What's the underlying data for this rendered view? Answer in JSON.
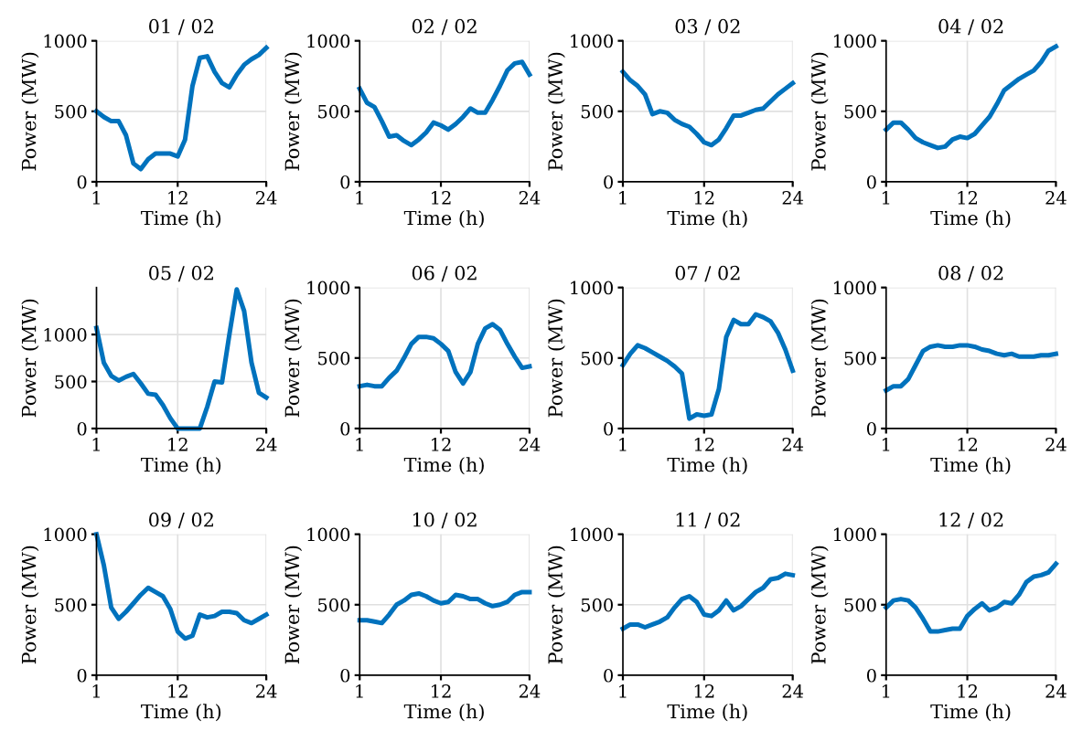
{
  "chart_data": [
    {
      "type": "line",
      "title": "01 / 02",
      "xlabel": "Time (h)",
      "ylabel": "Power (MW)",
      "x": [
        1,
        2,
        3,
        4,
        5,
        6,
        7,
        8,
        9,
        10,
        11,
        12,
        13,
        14,
        15,
        16,
        17,
        18,
        19,
        20,
        21,
        22,
        23,
        24
      ],
      "series": [
        {
          "color": "#0072bd",
          "values": [
            500,
            460,
            430,
            430,
            330,
            130,
            90,
            160,
            200,
            200,
            200,
            180,
            300,
            680,
            880,
            890,
            780,
            700,
            670,
            760,
            830,
            870,
            900,
            950
          ]
        }
      ],
      "xlim": [
        1,
        24
      ],
      "xticks": [
        1,
        12,
        24
      ],
      "ylim": [
        0,
        1000
      ],
      "yticks": [
        0,
        500,
        1000
      ],
      "grid": true,
      "line_style": "solid"
    },
    {
      "type": "line",
      "title": "02 / 02",
      "xlabel": "Time (h)",
      "ylabel": "Power (MW)",
      "x": [
        1,
        2,
        3,
        4,
        5,
        6,
        7,
        8,
        9,
        10,
        11,
        12,
        13,
        14,
        15,
        16,
        17,
        18,
        19,
        20,
        21,
        22,
        23,
        24
      ],
      "series": [
        {
          "color": "#0072bd",
          "values": [
            660,
            560,
            530,
            430,
            320,
            330,
            290,
            260,
            300,
            350,
            420,
            400,
            370,
            410,
            460,
            520,
            490,
            490,
            580,
            680,
            790,
            840,
            850,
            760
          ]
        }
      ],
      "xlim": [
        1,
        24
      ],
      "xticks": [
        1,
        12,
        24
      ],
      "ylim": [
        0,
        1000
      ],
      "yticks": [
        0,
        500,
        1000
      ],
      "grid": true,
      "line_style": "solid"
    },
    {
      "type": "line",
      "title": "03 / 02",
      "xlabel": "Time (h)",
      "ylabel": "Power (MW)",
      "x": [
        1,
        2,
        3,
        4,
        5,
        6,
        7,
        8,
        9,
        10,
        11,
        12,
        13,
        14,
        15,
        16,
        17,
        18,
        19,
        20,
        21,
        22,
        23,
        24
      ],
      "series": [
        {
          "color": "#0072bd",
          "values": [
            780,
            720,
            680,
            620,
            480,
            500,
            490,
            440,
            410,
            390,
            340,
            280,
            260,
            300,
            380,
            470,
            470,
            490,
            510,
            520,
            570,
            620,
            660,
            700
          ]
        }
      ],
      "xlim": [
        1,
        24
      ],
      "xticks": [
        1,
        12,
        24
      ],
      "ylim": [
        0,
        1000
      ],
      "yticks": [
        0,
        500,
        1000
      ],
      "grid": true,
      "line_style": "solid"
    },
    {
      "type": "line",
      "title": "04 / 02",
      "xlabel": "Time (h)",
      "ylabel": "Power (MW)",
      "x": [
        1,
        2,
        3,
        4,
        5,
        6,
        7,
        8,
        9,
        10,
        11,
        12,
        13,
        14,
        15,
        16,
        17,
        18,
        19,
        20,
        21,
        22,
        23,
        24
      ],
      "series": [
        {
          "color": "#0072bd",
          "values": [
            370,
            420,
            420,
            370,
            310,
            280,
            260,
            240,
            250,
            300,
            320,
            310,
            340,
            400,
            460,
            550,
            650,
            690,
            730,
            760,
            790,
            850,
            930,
            960
          ]
        }
      ],
      "xlim": [
        1,
        24
      ],
      "xticks": [
        1,
        12,
        24
      ],
      "ylim": [
        0,
        1000
      ],
      "yticks": [
        0,
        500,
        1000
      ],
      "grid": true,
      "line_style": "solid"
    },
    {
      "type": "line",
      "title": "05 / 02",
      "xlabel": "Time (h)",
      "ylabel": "Power (MW)",
      "x": [
        1,
        2,
        3,
        4,
        5,
        6,
        7,
        8,
        9,
        10,
        11,
        12,
        13,
        14,
        15,
        16,
        17,
        18,
        19,
        20,
        21,
        22,
        23,
        24
      ],
      "series": [
        {
          "color": "#0072bd",
          "values": [
            1070,
            700,
            560,
            510,
            550,
            580,
            480,
            370,
            360,
            250,
            110,
            0,
            0,
            0,
            0,
            230,
            500,
            490,
            1000,
            1480,
            1250,
            700,
            380,
            330
          ]
        }
      ],
      "xlim": [
        1,
        24
      ],
      "xticks": [
        1,
        12,
        24
      ],
      "ylim": [
        0,
        1500
      ],
      "yticks": [
        0,
        500,
        1000
      ],
      "grid": true,
      "line_style": "solid"
    },
    {
      "type": "line",
      "title": "06 / 02",
      "xlabel": "Time (h)",
      "ylabel": "Power (MW)",
      "x": [
        1,
        2,
        3,
        4,
        5,
        6,
        7,
        8,
        9,
        10,
        11,
        12,
        13,
        14,
        15,
        16,
        17,
        18,
        19,
        20,
        21,
        22,
        23,
        24
      ],
      "series": [
        {
          "color": "#0072bd",
          "values": [
            300,
            310,
            300,
            300,
            360,
            410,
            500,
            600,
            650,
            650,
            640,
            600,
            550,
            400,
            320,
            400,
            600,
            710,
            740,
            700,
            600,
            510,
            430,
            440
          ]
        }
      ],
      "xlim": [
        1,
        24
      ],
      "xticks": [
        1,
        12,
        24
      ],
      "ylim": [
        0,
        1000
      ],
      "yticks": [
        0,
        500,
        1000
      ],
      "grid": true,
      "line_style": "solid"
    },
    {
      "type": "line",
      "title": "07 / 02",
      "xlabel": "Time (h)",
      "ylabel": "Power (MW)",
      "x": [
        1,
        2,
        3,
        4,
        5,
        6,
        7,
        8,
        9,
        10,
        11,
        12,
        13,
        14,
        15,
        16,
        17,
        18,
        19,
        20,
        21,
        22,
        23,
        24
      ],
      "series": [
        {
          "color": "#0072bd",
          "values": [
            450,
            530,
            590,
            570,
            540,
            510,
            480,
            440,
            390,
            70,
            100,
            90,
            100,
            280,
            650,
            770,
            740,
            740,
            810,
            790,
            760,
            680,
            560,
            410
          ]
        }
      ],
      "xlim": [
        1,
        24
      ],
      "xticks": [
        1,
        12,
        24
      ],
      "ylim": [
        0,
        1000
      ],
      "yticks": [
        0,
        500,
        1000
      ],
      "grid": true,
      "line_style": "solid"
    },
    {
      "type": "line",
      "title": "08 / 02",
      "xlabel": "Time (h)",
      "ylabel": "Power (MW)",
      "x": [
        1,
        2,
        3,
        4,
        5,
        6,
        7,
        8,
        9,
        10,
        11,
        12,
        13,
        14,
        15,
        16,
        17,
        18,
        19,
        20,
        21,
        22,
        23,
        24
      ],
      "series": [
        {
          "color": "#0072bd",
          "values": [
            270,
            300,
            300,
            350,
            450,
            550,
            580,
            590,
            580,
            580,
            590,
            590,
            580,
            560,
            550,
            530,
            520,
            530,
            510,
            510,
            510,
            520,
            520,
            530
          ]
        }
      ],
      "xlim": [
        1,
        24
      ],
      "xticks": [
        1,
        12,
        24
      ],
      "ylim": [
        0,
        1000
      ],
      "yticks": [
        0,
        500,
        1000
      ],
      "grid": true,
      "line_style": "solid"
    },
    {
      "type": "line",
      "title": "09 / 02",
      "xlabel": "Time (h)",
      "ylabel": "Power (MW)",
      "x": [
        1,
        2,
        3,
        4,
        5,
        6,
        7,
        8,
        9,
        10,
        11,
        12,
        13,
        14,
        15,
        16,
        17,
        18,
        19,
        20,
        21,
        22,
        23,
        24
      ],
      "series": [
        {
          "color": "#0072bd",
          "values": [
            1000,
            780,
            480,
            400,
            450,
            510,
            570,
            620,
            590,
            560,
            470,
            310,
            260,
            280,
            430,
            410,
            420,
            450,
            450,
            440,
            390,
            370,
            400,
            430
          ]
        }
      ],
      "xlim": [
        1,
        24
      ],
      "xticks": [
        1,
        12,
        24
      ],
      "ylim": [
        0,
        1000
      ],
      "yticks": [
        0,
        500,
        1000
      ],
      "grid": true,
      "line_style": "solid"
    },
    {
      "type": "line",
      "title": "10 / 02",
      "xlabel": "Time (h)",
      "ylabel": "Power (MW)",
      "x": [
        1,
        2,
        3,
        4,
        5,
        6,
        7,
        8,
        9,
        10,
        11,
        12,
        13,
        14,
        15,
        16,
        17,
        18,
        19,
        20,
        21,
        22,
        23,
        24
      ],
      "series": [
        {
          "color": "#0072bd",
          "values": [
            390,
            390,
            380,
            370,
            430,
            500,
            530,
            570,
            580,
            560,
            530,
            510,
            520,
            570,
            560,
            540,
            540,
            510,
            490,
            500,
            520,
            570,
            590,
            590
          ]
        }
      ],
      "xlim": [
        1,
        24
      ],
      "xticks": [
        1,
        12,
        24
      ],
      "ylim": [
        0,
        1000
      ],
      "yticks": [
        0,
        500,
        1000
      ],
      "grid": true,
      "line_style": "solid"
    },
    {
      "type": "line",
      "title": "11 / 02",
      "xlabel": "Time (h)",
      "ylabel": "Power (MW)",
      "x": [
        1,
        2,
        3,
        4,
        5,
        6,
        7,
        8,
        9,
        10,
        11,
        12,
        13,
        14,
        15,
        16,
        17,
        18,
        19,
        20,
        21,
        22,
        23,
        24
      ],
      "series": [
        {
          "color": "#0072bd",
          "values": [
            330,
            360,
            360,
            340,
            360,
            380,
            410,
            480,
            540,
            560,
            520,
            430,
            420,
            460,
            530,
            460,
            490,
            540,
            590,
            620,
            680,
            690,
            720,
            710
          ]
        }
      ],
      "xlim": [
        1,
        24
      ],
      "xticks": [
        1,
        12,
        24
      ],
      "ylim": [
        0,
        1000
      ],
      "yticks": [
        0,
        500,
        1000
      ],
      "grid": true,
      "line_style": "solid"
    },
    {
      "type": "line",
      "title": "12 / 02",
      "xlabel": "Time (h)",
      "ylabel": "Power (MW)",
      "x": [
        1,
        2,
        3,
        4,
        5,
        6,
        7,
        8,
        9,
        10,
        11,
        12,
        13,
        14,
        15,
        16,
        17,
        18,
        19,
        20,
        21,
        22,
        23,
        24
      ],
      "series": [
        {
          "color": "#0072bd",
          "values": [
            480,
            530,
            540,
            530,
            480,
            400,
            310,
            310,
            320,
            330,
            330,
            420,
            470,
            510,
            460,
            480,
            520,
            510,
            570,
            660,
            700,
            710,
            730,
            790
          ]
        }
      ],
      "xlim": [
        1,
        24
      ],
      "xticks": [
        1,
        12,
        24
      ],
      "ylim": [
        0,
        1000
      ],
      "yticks": [
        0,
        500,
        1000
      ],
      "grid": true,
      "line_style": "solid"
    }
  ]
}
